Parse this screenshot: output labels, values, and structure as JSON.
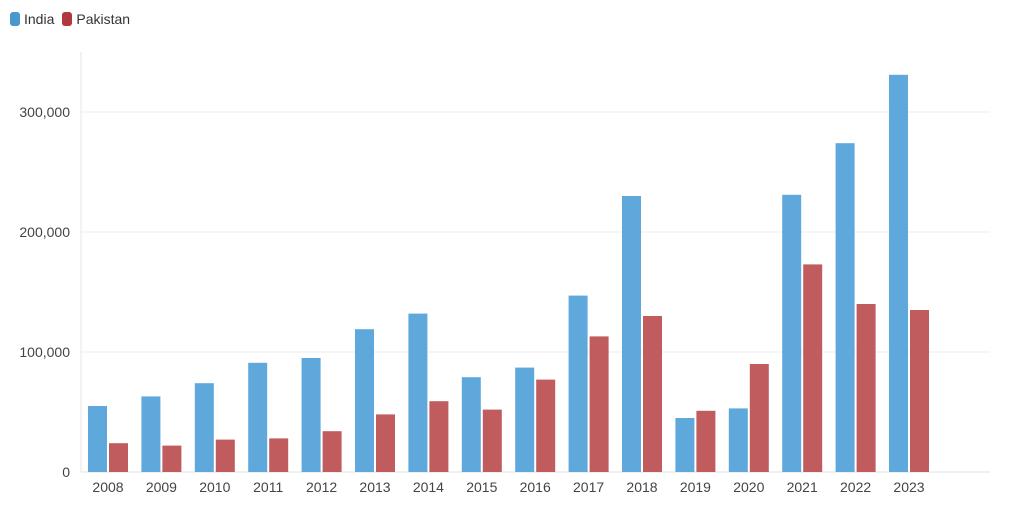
{
  "chart_data": {
    "type": "bar",
    "categories": [
      "2008",
      "2009",
      "2010",
      "2011",
      "2012",
      "2013",
      "2014",
      "2015",
      "2016",
      "2017",
      "2018",
      "2019",
      "2020",
      "2021",
      "2022",
      "2023"
    ],
    "series": [
      {
        "name": "India",
        "color": "#5fa8dc",
        "values": [
          55000,
          63000,
          74000,
          91000,
          95000,
          119000,
          132000,
          79000,
          87000,
          147000,
          230000,
          45000,
          53000,
          231000,
          274000,
          331000
        ]
      },
      {
        "name": "Pakistan",
        "color": "#c05c5e",
        "values": [
          24000,
          22000,
          27000,
          28000,
          34000,
          48000,
          59000,
          52000,
          77000,
          113000,
          130000,
          51000,
          90000,
          173000,
          140000,
          135000
        ]
      }
    ],
    "yticks": [
      "0",
      "100,000",
      "200,000",
      "300,000"
    ],
    "ytick_values": [
      0,
      100000,
      200000,
      300000
    ],
    "ylim": [
      0,
      350000
    ],
    "grid": true,
    "legend_position": "top-left",
    "title": "",
    "xlabel": "",
    "ylabel": ""
  }
}
